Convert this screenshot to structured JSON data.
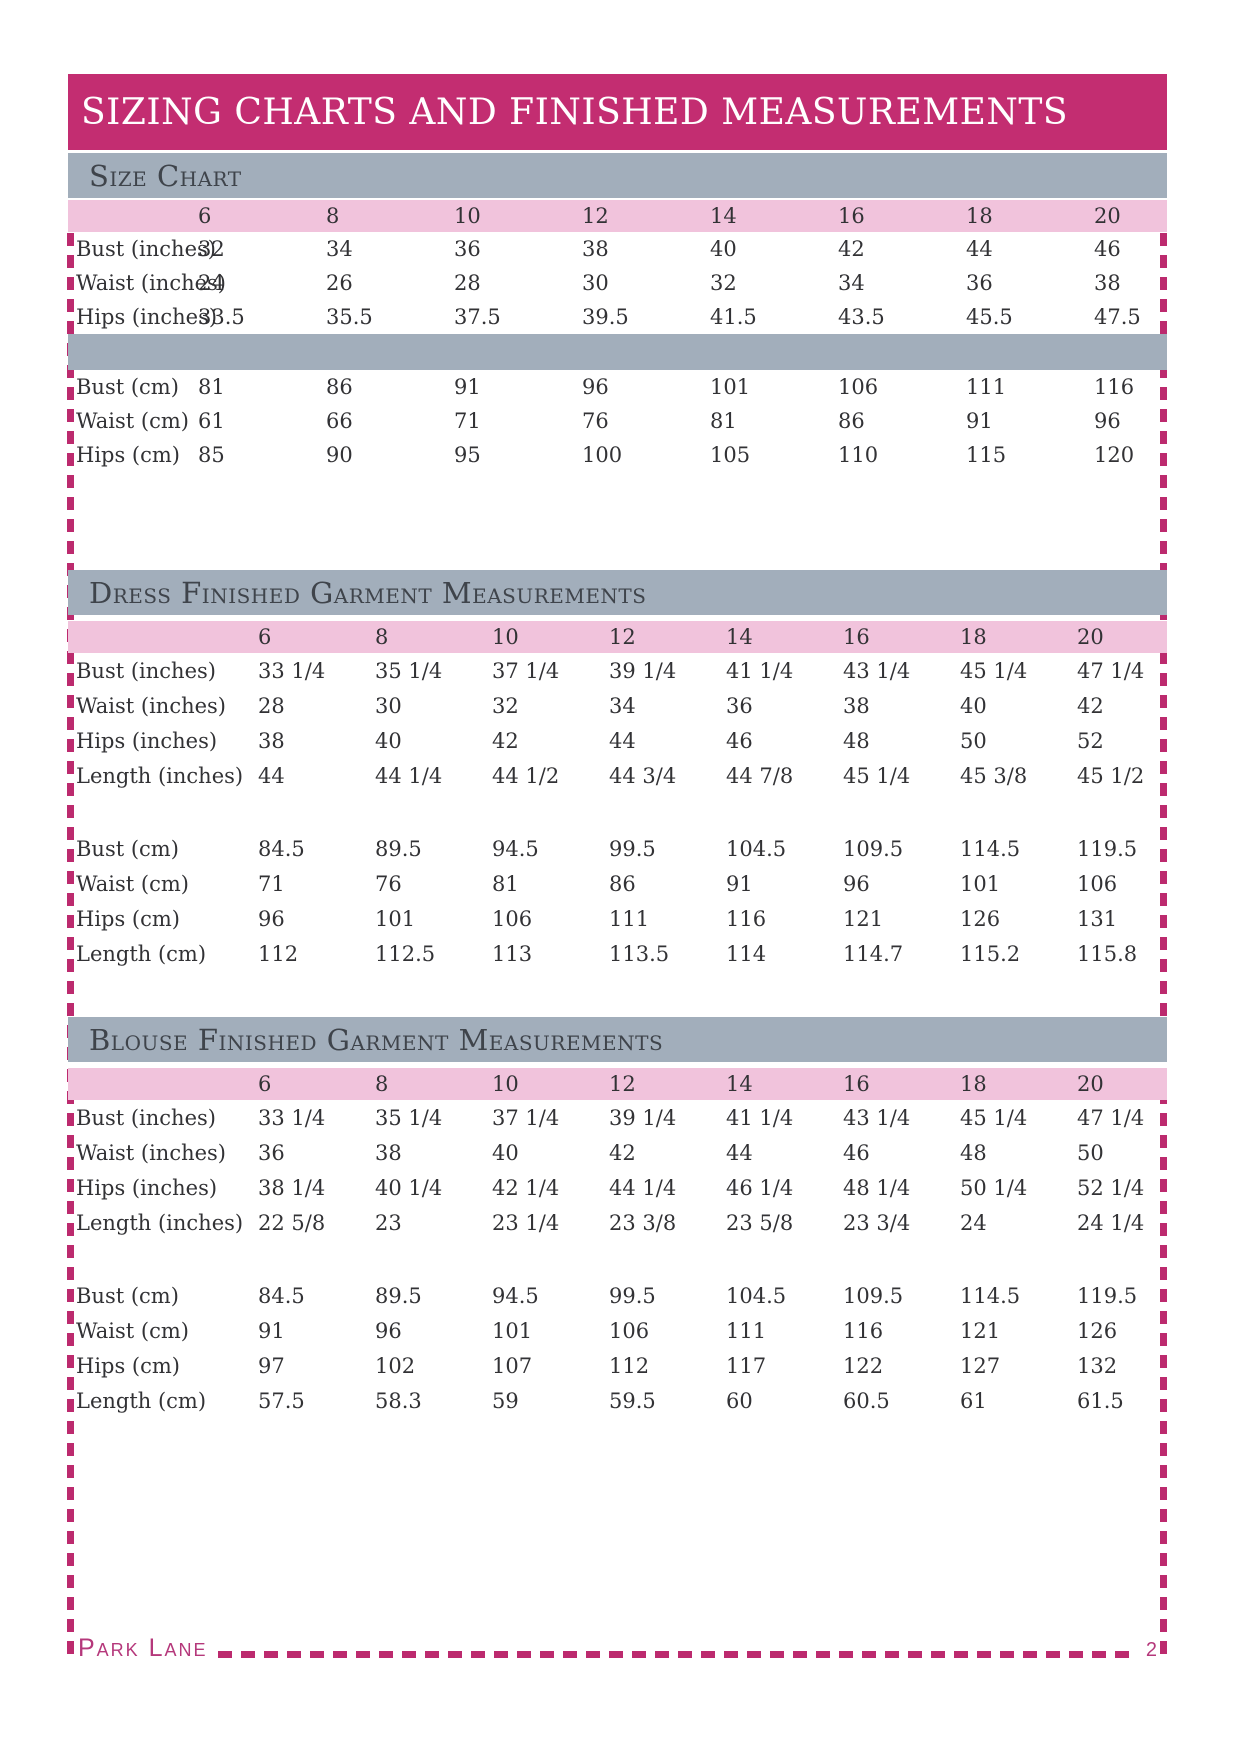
{
  "page": {
    "title": "SIZING CHARTS AND FINISHED MEASUREMENTS",
    "footer": {
      "brand": "Park Lane",
      "page_number": "2"
    }
  },
  "colors": {
    "title_bar_magenta": "#C32D71",
    "section_bar_gray": "#A2AEBB",
    "size_header_pink": "#F1C3DC",
    "dash_magenta": "#BC2A6E",
    "footer_magenta": "#B5387B",
    "body_text": "#323235",
    "heading_text": "#3F444B"
  },
  "sections": [
    {
      "heading": "Size Chart",
      "separator": "bar",
      "sizes": [
        "6",
        "8",
        "10",
        "12",
        "14",
        "16",
        "18",
        "20"
      ],
      "inch_rows": [
        {
          "label": "Bust (inches)",
          "values": [
            "32",
            "34",
            "36",
            "38",
            "40",
            "42",
            "44",
            "46"
          ]
        },
        {
          "label": "Waist (inches)",
          "values": [
            "24",
            "26",
            "28",
            "30",
            "32",
            "34",
            "36",
            "38"
          ]
        },
        {
          "label": "Hips (inches)",
          "values": [
            "33.5",
            "35.5",
            "37.5",
            "39.5",
            "41.5",
            "43.5",
            "45.5",
            "47.5"
          ]
        }
      ],
      "cm_rows": [
        {
          "label": "Bust (cm)",
          "values": [
            "81",
            "86",
            "91",
            "96",
            "101",
            "106",
            "111",
            "116"
          ]
        },
        {
          "label": "Waist (cm)",
          "values": [
            "61",
            "66",
            "71",
            "76",
            "81",
            "86",
            "91",
            "96"
          ]
        },
        {
          "label": "Hips (cm)",
          "values": [
            "85",
            "90",
            "95",
            "100",
            "105",
            "110",
            "115",
            "120"
          ]
        }
      ]
    },
    {
      "heading": "Dress Finished Garment Measurements",
      "separator": "space",
      "sizes": [
        "6",
        "8",
        "10",
        "12",
        "14",
        "16",
        "18",
        "20"
      ],
      "inch_rows": [
        {
          "label": "Bust (inches)",
          "values": [
            "33 1/4",
            "35 1/4",
            "37 1/4",
            "39 1/4",
            "41 1/4",
            "43 1/4",
            "45 1/4",
            "47 1/4"
          ]
        },
        {
          "label": "Waist (inches)",
          "values": [
            "28",
            "30",
            "32",
            "34",
            "36",
            "38",
            "40",
            "42"
          ]
        },
        {
          "label": "Hips (inches)",
          "values": [
            "38",
            "40",
            "42",
            "44",
            "46",
            "48",
            "50",
            "52"
          ]
        },
        {
          "label": "Length (inches)",
          "values": [
            "44",
            "44 1/4",
            "44 1/2",
            "44 3/4",
            "44 7/8",
            "45 1/4",
            "45 3/8",
            "45 1/2"
          ]
        }
      ],
      "cm_rows": [
        {
          "label": "Bust (cm)",
          "values": [
            "84.5",
            "89.5",
            "94.5",
            "99.5",
            "104.5",
            "109.5",
            "114.5",
            "119.5"
          ]
        },
        {
          "label": "Waist (cm)",
          "values": [
            "71",
            "76",
            "81",
            "86",
            "91",
            "96",
            "101",
            "106"
          ]
        },
        {
          "label": "Hips (cm)",
          "values": [
            "96",
            "101",
            "106",
            "111",
            "116",
            "121",
            "126",
            "131"
          ]
        },
        {
          "label": "Length (cm)",
          "values": [
            "112",
            "112.5",
            "113",
            "113.5",
            "114",
            "114.7",
            "115.2",
            "115.8"
          ]
        }
      ]
    },
    {
      "heading": "Blouse Finished Garment Measurements",
      "separator": "space",
      "sizes": [
        "6",
        "8",
        "10",
        "12",
        "14",
        "16",
        "18",
        "20"
      ],
      "inch_rows": [
        {
          "label": "Bust (inches)",
          "values": [
            "33 1/4",
            "35 1/4",
            "37 1/4",
            "39 1/4",
            "41 1/4",
            "43 1/4",
            "45 1/4",
            "47 1/4"
          ]
        },
        {
          "label": "Waist (inches)",
          "values": [
            "36",
            "38",
            "40",
            "42",
            "44",
            "46",
            "48",
            "50"
          ]
        },
        {
          "label": "Hips (inches)",
          "values": [
            "38 1/4",
            "40 1/4",
            "42 1/4",
            "44 1/4",
            "46 1/4",
            "48 1/4",
            "50 1/4",
            "52 1/4"
          ]
        },
        {
          "label": "Length (inches)",
          "values": [
            "22 5/8",
            "23",
            "23 1/4",
            "23 3/8",
            "23 5/8",
            "23 3/4",
            "24",
            "24 1/4"
          ]
        }
      ],
      "cm_rows": [
        {
          "label": "Bust (cm)",
          "values": [
            "84.5",
            "89.5",
            "94.5",
            "99.5",
            "104.5",
            "109.5",
            "114.5",
            "119.5"
          ]
        },
        {
          "label": "Waist (cm)",
          "values": [
            "91",
            "96",
            "101",
            "106",
            "111",
            "116",
            "121",
            "126"
          ]
        },
        {
          "label": "Hips (cm)",
          "values": [
            "97",
            "102",
            "107",
            "112",
            "117",
            "122",
            "127",
            "132"
          ]
        },
        {
          "label": "Length (cm)",
          "values": [
            "57.5",
            "58.3",
            "59",
            "59.5",
            "60",
            "60.5",
            "61",
            "61.5"
          ]
        }
      ]
    }
  ]
}
